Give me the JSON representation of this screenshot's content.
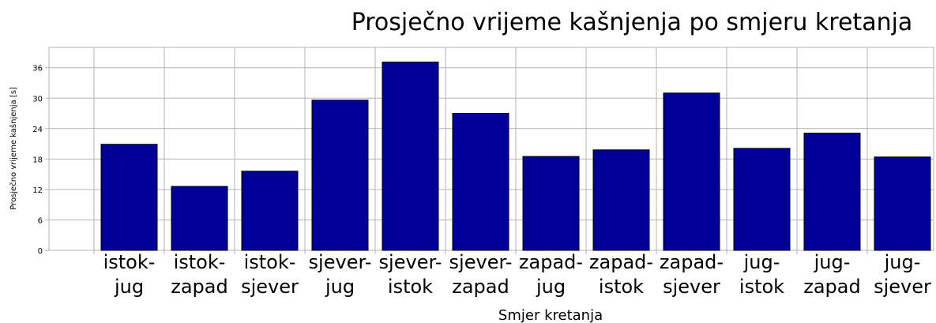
{
  "chart_data": {
    "type": "bar",
    "title": "Prosječno vrijeme kašnjenja po smjeru kretanja",
    "x_label": "Smjer kretanja",
    "y_label": "Prosječno vrijeme kašnjenja [s]",
    "categories": [
      "istok-jug",
      "istok-zapad",
      "istok-sjever",
      "sjever-jug",
      "sjever-istok",
      "sjever-zapad",
      "zapad-jug",
      "zapad-istok",
      "zapad-sjever",
      "jug-istok",
      "jug-zapad",
      "jug-sjever"
    ],
    "values": [
      20.9,
      12.6,
      15.6,
      29.6,
      37.1,
      27.0,
      18.5,
      19.8,
      31.0,
      20.1,
      23.1,
      18.4
    ],
    "color": "#000099",
    "ylim": [
      0,
      40
    ],
    "yticks": [
      0,
      6,
      12,
      18,
      24,
      30,
      36
    ],
    "grid": true
  }
}
